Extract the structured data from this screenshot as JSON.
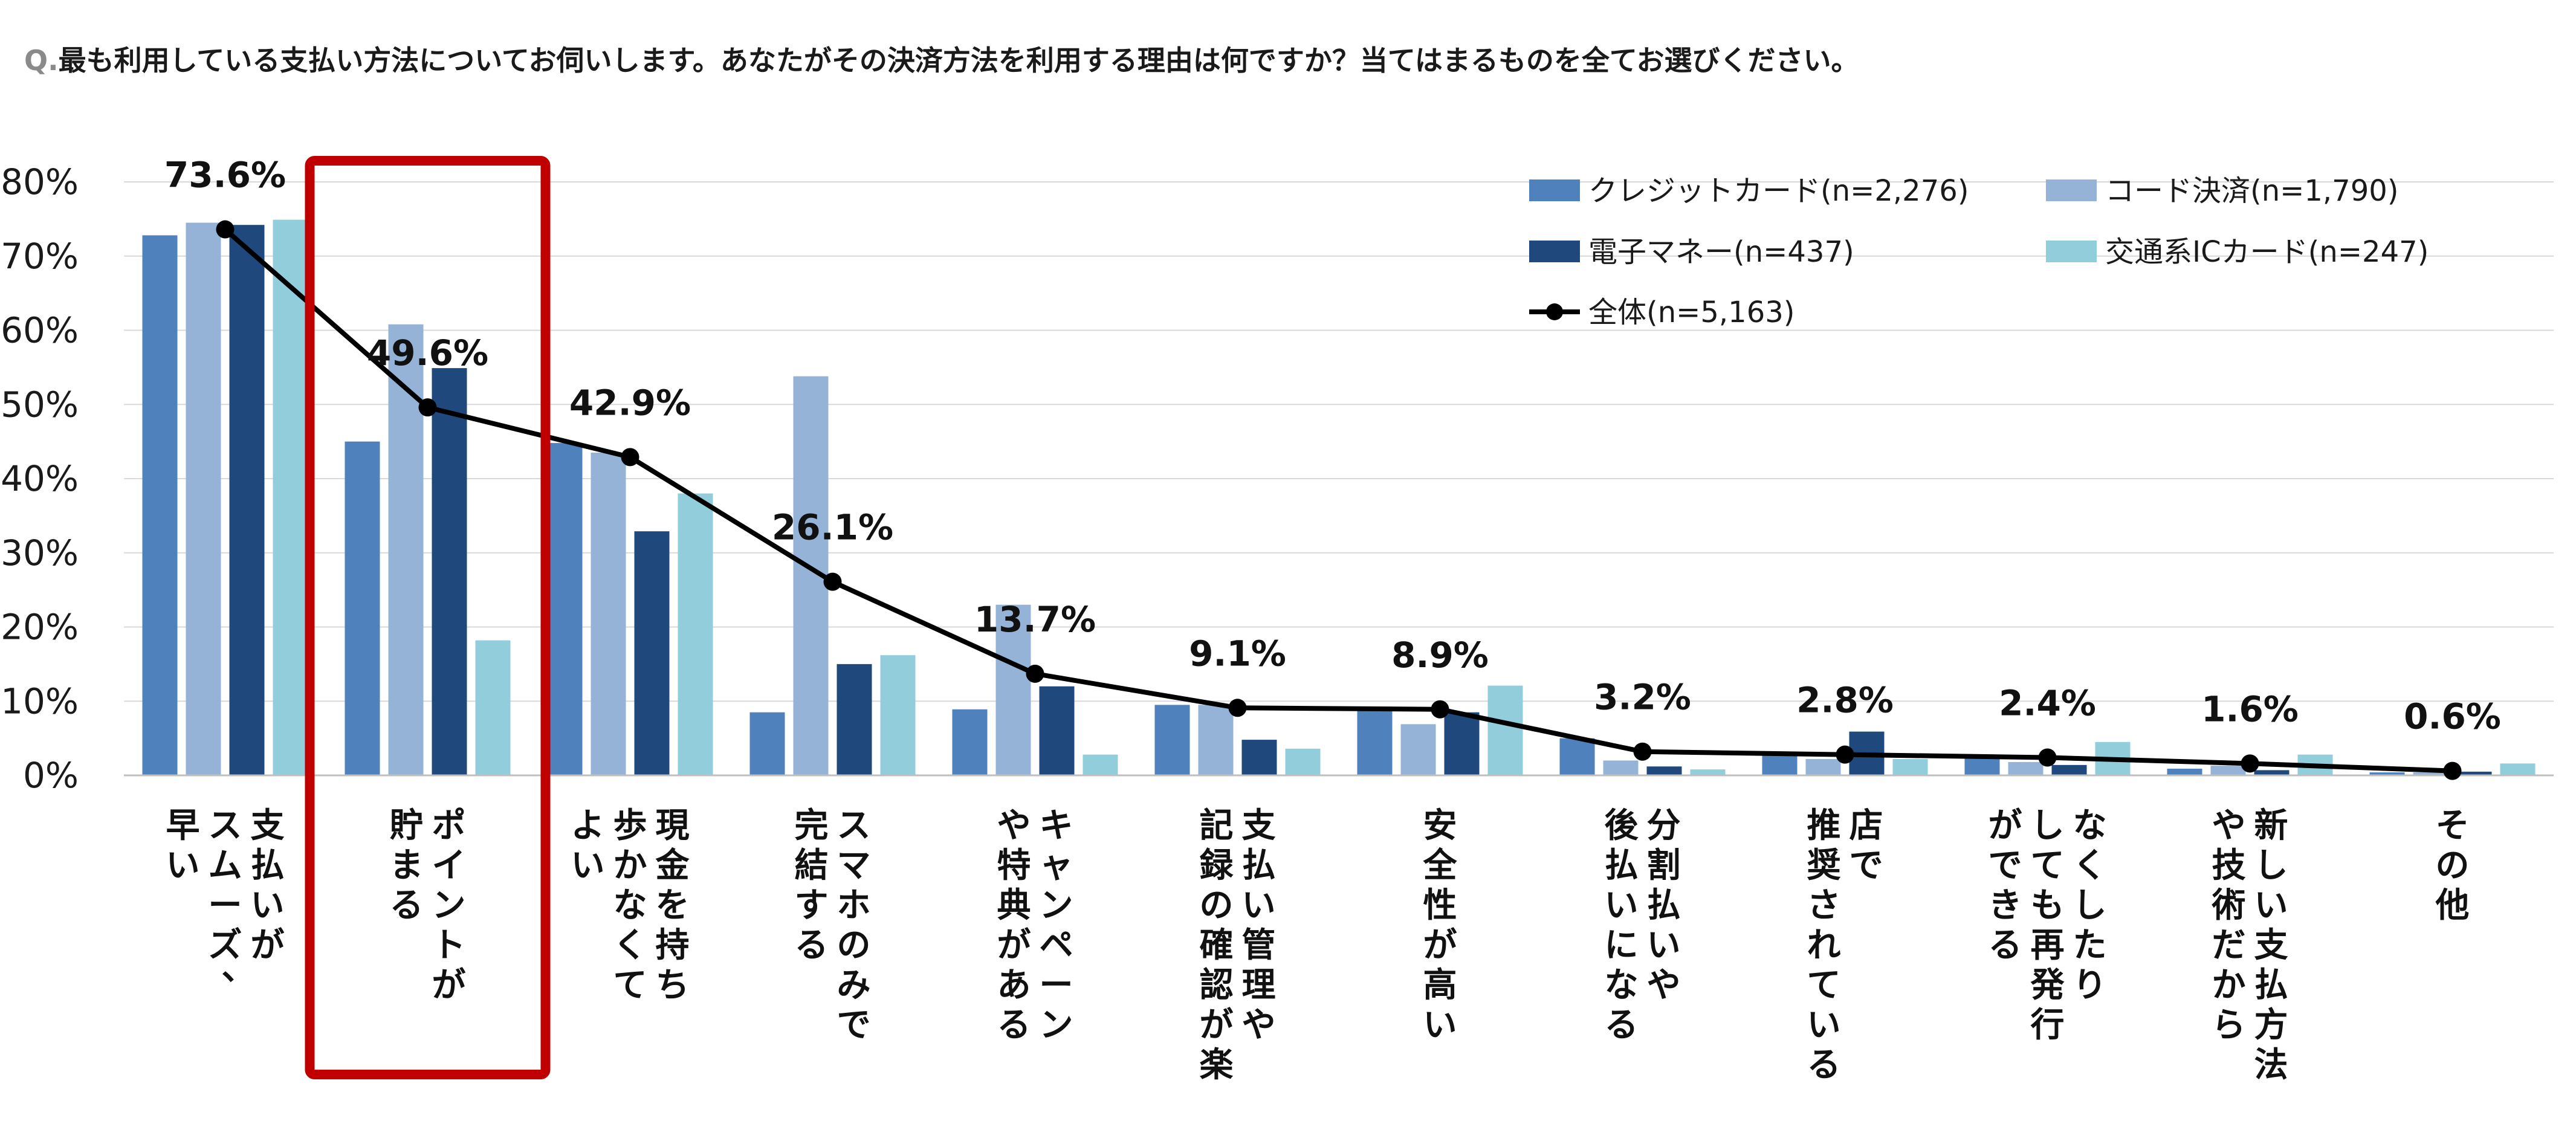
{
  "question": {
    "prefix": "Q.",
    "text": "最も利用している支払い方法についてお伺いします。あなたがその決済方法を利用する理由は何ですか？当てはまるものを全てお選びください。"
  },
  "colors": {
    "credit": "#4f81bd",
    "code": "#95b3d7",
    "emoney": "#1f497d",
    "transit": "#92cddc",
    "total": "#000000",
    "highlight": "#c00000",
    "grid": "#d9d9d9"
  },
  "chart_data": {
    "type": "bar",
    "ylim": [
      0,
      80
    ],
    "yticks": [
      "0%",
      "10%",
      "20%",
      "30%",
      "40%",
      "50%",
      "60%",
      "70%",
      "80%"
    ],
    "grid": true,
    "legend_position": "top-right",
    "highlight_category_index": 1,
    "categories": [
      [
        "支払いが",
        "スムーズ、",
        "早い"
      ],
      [
        "ポイントが",
        "貯まる"
      ],
      [
        "現金を持ち",
        "歩かなくて",
        "よい"
      ],
      [
        "スマホのみで",
        "完結する"
      ],
      [
        "キャンペーン",
        "や特典がある"
      ],
      [
        "支払い管理や",
        "記録の確認が楽"
      ],
      [
        "安全性が高い"
      ],
      [
        "分割払いや",
        "後払いになる"
      ],
      [
        "店で",
        "推奨されている"
      ],
      [
        "なくしたり",
        "しても再発行",
        "ができる"
      ],
      [
        "新しい支払方法",
        "や技術だから"
      ],
      [
        "その他"
      ]
    ],
    "series": [
      {
        "name": "クレジットカード(n=2,276)",
        "kind": "bar",
        "color_key": "credit",
        "values": [
          72.8,
          45.0,
          44.8,
          8.5,
          8.9,
          9.5,
          9.0,
          5.0,
          3.0,
          2.8,
          0.9,
          0.4
        ]
      },
      {
        "name": "コード決済(n=1,790)",
        "kind": "bar",
        "color_key": "code",
        "values": [
          74.5,
          60.8,
          43.5,
          53.8,
          23.0,
          9.5,
          6.9,
          2.0,
          2.2,
          1.8,
          1.3,
          0.4
        ]
      },
      {
        "name": "電子マネー(n=437)",
        "kind": "bar",
        "color_key": "emoney",
        "values": [
          74.2,
          54.9,
          32.9,
          15.0,
          12.0,
          4.8,
          8.5,
          1.2,
          5.9,
          1.4,
          0.7,
          0.5
        ]
      },
      {
        "name": "交通系ICカード(n=247)",
        "kind": "bar",
        "color_key": "transit",
        "values": [
          74.9,
          18.2,
          38.0,
          16.2,
          2.8,
          3.6,
          12.1,
          0.8,
          2.2,
          4.5,
          2.8,
          1.6
        ]
      },
      {
        "name": "全体(n=5,163)",
        "kind": "line",
        "color_key": "total",
        "values": [
          73.6,
          49.6,
          42.9,
          26.1,
          13.7,
          9.1,
          8.9,
          3.2,
          2.8,
          2.4,
          1.6,
          0.6
        ],
        "labels": [
          "73.6%",
          "49.6%",
          "42.9%",
          "26.1%",
          "13.7%",
          "9.1%",
          "8.9%",
          "3.2%",
          "2.8%",
          "2.4%",
          "1.6%",
          "0.6%"
        ]
      }
    ]
  }
}
